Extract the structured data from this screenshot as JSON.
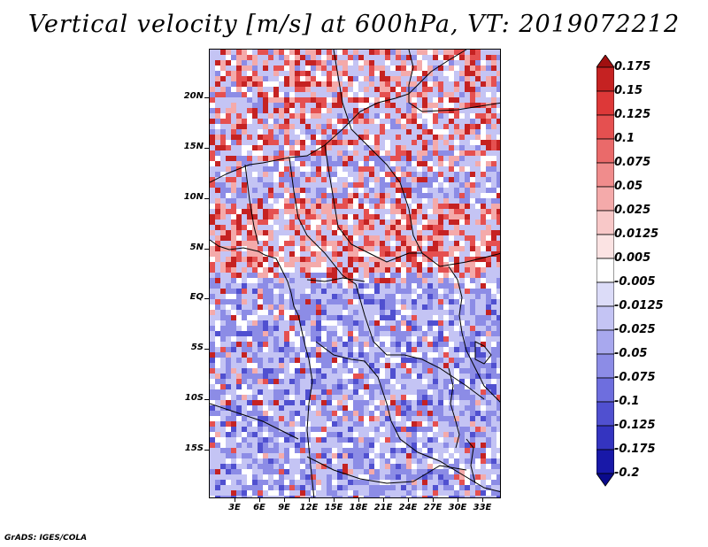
{
  "title": "Vertical velocity [m/s] at 600hPa, VT: 2019072212",
  "footer": "GrADS: IGES/COLA",
  "axes": {
    "lat_labels": [
      "20N",
      "15N",
      "10N",
      "5N",
      "EQ",
      "5S",
      "10S",
      "15S"
    ],
    "lon_labels": [
      "3E",
      "6E",
      "9E",
      "12E",
      "15E",
      "18E",
      "21E",
      "24E",
      "27E",
      "30E",
      "33E"
    ]
  },
  "colorbar": {
    "levels": [
      "0.175",
      "0.15",
      "0.125",
      "0.1",
      "0.075",
      "0.05",
      "0.025",
      "0.0125",
      "0.005",
      "-0.005",
      "-0.0125",
      "-0.025",
      "-0.05",
      "-0.075",
      "-0.1",
      "-0.125",
      "-0.175",
      "-0.2"
    ],
    "colors": [
      "#a01010",
      "#c52222",
      "#dd3838",
      "#e55050",
      "#ea6a6a",
      "#f08c8c",
      "#f4aaaa",
      "#f8c8c8",
      "#fbe3e3",
      "#ffffff",
      "#dcdcf8",
      "#c4c4f4",
      "#a8a8ee",
      "#8c8ce6",
      "#6e6ede",
      "#5050d0",
      "#3434c0",
      "#1818a8",
      "#0a0a8c"
    ]
  },
  "field_colors": {
    "updraft_strong": "#c52222",
    "updraft": "#e55050",
    "updraft_weak": "#f4aaaa",
    "neutral": "#ffffff",
    "downdraft_weak": "#c4c4f4",
    "downdraft": "#8c8ce6",
    "downdraft_strong": "#5050d0"
  }
}
